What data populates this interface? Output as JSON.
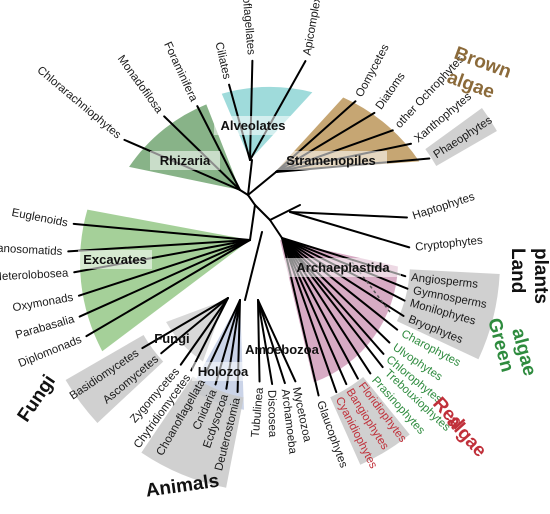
{
  "colors": {
    "black": "#1a1a1a",
    "green": "#2e8b3e",
    "red": "#c0303a",
    "brown": "#8b6a3a",
    "teal": "#7fcfcf",
    "rhizaria": "#6aa06a",
    "stramenopiles": "#b89050",
    "excavates": "#8fc47f",
    "archaeplastida": "#c98fb0",
    "gray": "#c8c8c8",
    "blue": "#a9b8d8"
  },
  "clades": {
    "alveolates": "Alveolates",
    "stramenopiles": "Stramenopiles",
    "rhizaria": "Rhizaria",
    "excavates": "Excavates",
    "archaeplastida": "Archaeplastida",
    "fungi": "Fungi",
    "holozoa": "Holozoa",
    "amoebozoa": "Amoebozoa"
  },
  "groups": {
    "brown_algae": [
      "Brown",
      "algae"
    ],
    "land_plants": [
      "Land",
      "plants"
    ],
    "green_algae": [
      "Green",
      "algae"
    ],
    "red_algae": [
      "Red",
      "algae"
    ],
    "fungi": "Fungi",
    "animals": "Animals"
  },
  "leaves": [
    {
      "name": "Dinoflagellates",
      "color": "black"
    },
    {
      "name": "Ciliates",
      "color": "black"
    },
    {
      "name": "Apicomplexans",
      "color": "black"
    },
    {
      "name": "Oomycetes",
      "color": "black"
    },
    {
      "name": "Diatoms",
      "color": "black"
    },
    {
      "name": "other Ochrophytes",
      "color": "black"
    },
    {
      "name": "Xanthophytes",
      "color": "black"
    },
    {
      "name": "Phaeophytes",
      "color": "black"
    },
    {
      "name": "Haptophytes",
      "color": "black"
    },
    {
      "name": "Cryptophytes",
      "color": "black"
    },
    {
      "name": "Angiosperms",
      "color": "black"
    },
    {
      "name": "Gymnosperms",
      "color": "black"
    },
    {
      "name": "Monilophytes",
      "color": "black"
    },
    {
      "name": "Bryophytes",
      "color": "black"
    },
    {
      "name": "Charophytes",
      "color": "green"
    },
    {
      "name": "Ulvophytes",
      "color": "green"
    },
    {
      "name": "Chlorophytes",
      "color": "green"
    },
    {
      "name": "Trebouxiophytes",
      "color": "green"
    },
    {
      "name": "Prasinophytes",
      "color": "green"
    },
    {
      "name": "Floridiophytes",
      "color": "red"
    },
    {
      "name": "Bangiophytes",
      "color": "red"
    },
    {
      "name": "Cyanidiophytes",
      "color": "red"
    },
    {
      "name": "Glaucophytes",
      "color": "black"
    },
    {
      "name": "Mycetozoa",
      "color": "black"
    },
    {
      "name": "Archamoeba",
      "color": "black"
    },
    {
      "name": "Discosea",
      "color": "black"
    },
    {
      "name": "Tubulinea",
      "color": "black"
    },
    {
      "name": "Deuterostomia",
      "color": "black"
    },
    {
      "name": "Ecdysozoa",
      "color": "black"
    },
    {
      "name": "Cnidaria",
      "color": "black"
    },
    {
      "name": "Choanoflagellata",
      "color": "black"
    },
    {
      "name": "Chytridiomycetes",
      "color": "black"
    },
    {
      "name": "Zygomycetes",
      "color": "black"
    },
    {
      "name": "Ascomycetes",
      "color": "black"
    },
    {
      "name": "Basidiomycetes",
      "color": "black"
    },
    {
      "name": "Diplomonads",
      "color": "black"
    },
    {
      "name": "Parabasalia",
      "color": "black"
    },
    {
      "name": "Oxymonads",
      "color": "black"
    },
    {
      "name": "Heterolobosea",
      "color": "black"
    },
    {
      "name": "Trypanosomatids",
      "color": "black"
    },
    {
      "name": "Euglenoids",
      "color": "black"
    },
    {
      "name": "Chlorarachniophytes",
      "color": "black"
    },
    {
      "name": "Monadofilosa",
      "color": "black"
    },
    {
      "name": "Foraminifera",
      "color": "black"
    }
  ]
}
